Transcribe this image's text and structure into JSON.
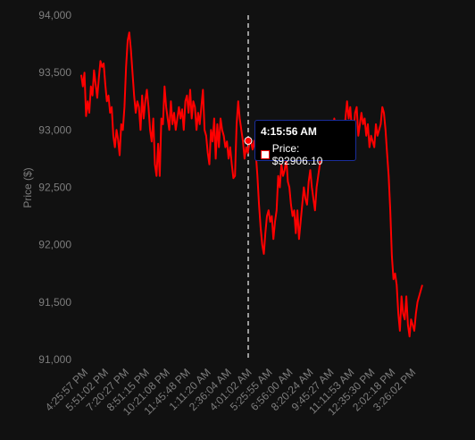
{
  "chart_data": {
    "type": "line",
    "title": "",
    "xlabel": "",
    "ylabel": "Price ($)",
    "ylim": [
      91000,
      94000
    ],
    "y_ticks": [
      "91,000",
      "91,500",
      "92,000",
      "92,500",
      "93,000",
      "93,500",
      "94,000"
    ],
    "x_tick_labels": [
      "4:25:57 PM",
      "5:51:02 PM",
      "7:20:27 PM",
      "8:51:15 PM",
      "10:21:08 PM",
      "11:45:48 PM",
      "1:11:20 AM",
      "2:36:04 AM",
      "4:01:02 AM",
      "5:25:55 AM",
      "6:56:00 AM",
      "8:20:24 AM",
      "9:45:27 AM",
      "11:11:53 AM",
      "12:35:30 PM",
      "2:02:18 PM",
      "3:26:02 PM"
    ],
    "grid": false,
    "line_color": "#ff0000",
    "series": [
      {
        "values": [
          93480,
          93380,
          93500,
          93120,
          93250,
          93150,
          93380,
          93300,
          93520,
          93400,
          93280,
          93450,
          93600,
          93550,
          93580,
          93400,
          93250,
          93300,
          93150,
          93200,
          92950,
          92850,
          93000,
          92920,
          92780,
          93050,
          93000,
          93200,
          93550,
          93780,
          93850,
          93700,
          93500,
          93300,
          93150,
          93250,
          93200,
          93000,
          93300,
          93100,
          93250,
          93350,
          93200,
          93000,
          92900,
          93100,
          92700,
          92600,
          92880,
          92600,
          93100,
          93050,
          93380,
          93200,
          93100,
          93000,
          93250,
          93050,
          93150,
          93000,
          93100,
          93200,
          93100,
          93180,
          93000,
          93250,
          93300,
          93150,
          93350,
          93100,
          93250,
          93200,
          93000,
          93150,
          93050,
          93200,
          93350,
          93000,
          92950,
          92800,
          92700,
          93000,
          92900,
          93100,
          92750,
          93050,
          92850,
          93100,
          93000,
          92950,
          92850,
          92900,
          92750,
          92850,
          92700,
          92580,
          92600,
          93050,
          93250,
          93100,
          93000,
          92900,
          92750,
          92850,
          92800,
          92880,
          92900,
          92830,
          92906,
          92800,
          92600,
          92350,
          92150,
          92000,
          91920,
          92100,
          92250,
          92300,
          92200,
          92250,
          92050,
          92200,
          92300,
          92600,
          92500,
          92700,
          92600,
          92650,
          92750,
          92550,
          92500,
          92350,
          92250,
          92300,
          92100,
          92300,
          92050,
          92200,
          92350,
          92500,
          92400,
          92350,
          92550,
          92650,
          92500,
          92400,
          92300,
          92500,
          92600,
          92700,
          92850,
          93050,
          92950,
          92850,
          93000,
          92900,
          93050,
          92950,
          93100,
          93000,
          92800,
          92750,
          92950,
          93050,
          92900,
          93100,
          93250,
          93100,
          93200,
          93000,
          92950,
          93150,
          93200,
          92950,
          93050,
          93150,
          93050,
          93100,
          92950,
          93050,
          92850,
          92950,
          92900,
          92850,
          93050,
          92950,
          93000,
          93050,
          93200,
          93150,
          93000,
          92800,
          92600,
          92300,
          91900,
          91700,
          91750,
          91650,
          91400,
          91250,
          91550,
          91400,
          91350,
          91550,
          91300,
          91200,
          91350,
          91300,
          91250,
          91400,
          91500,
          91550,
          91600,
          91650
        ]
      }
    ],
    "hover": {
      "label_time": "4:15:56 AM",
      "label_value": "Price: $92906.10"
    }
  }
}
